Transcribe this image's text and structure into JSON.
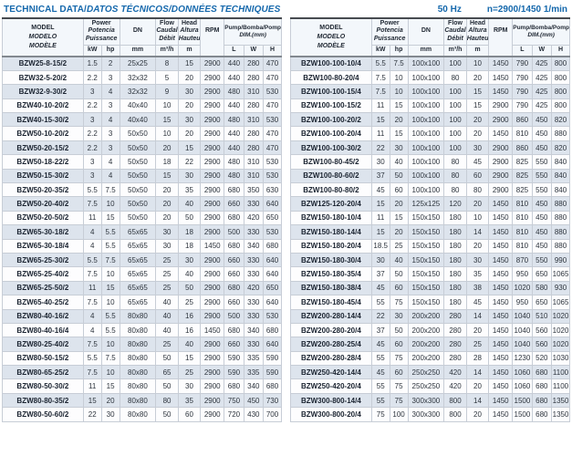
{
  "title": {
    "normal": "TECHNICAL DATA/",
    "italic": "DATOS TÉCNICOS/DONNÉES TECHNIQUES"
  },
  "specs": {
    "frequency": "50 Hz",
    "speed": "n=2900/1450 1/min"
  },
  "colors": {
    "accent_blue": "#1568ac",
    "header_bg": "#f3f7fb",
    "stripe_bg": "#dde4ed",
    "border": "#c7cdd6",
    "top_border": "#474b50"
  },
  "columns": {
    "model": [
      "MODEL",
      "MODELO",
      "MODÈLE"
    ],
    "power": [
      "Power",
      "Potencia",
      "Puissance"
    ],
    "power_units": [
      "kW",
      "hp"
    ],
    "dn": {
      "label": "DN",
      "unit": "mm"
    },
    "flow": {
      "line1": "Flow",
      "line2": "Caudal",
      "line3": "Débit",
      "unit": "m³/h"
    },
    "head": {
      "line1": "Head",
      "line2": "Altura",
      "line3": "Hauteur",
      "unit": "m"
    },
    "rpm": "RPM",
    "dim": {
      "line1": "Pump/Bomba/Pompe",
      "line2": "DIM.(mm)",
      "units": [
        "L",
        "W",
        "H"
      ]
    }
  },
  "tables": {
    "left": {
      "rows": [
        [
          "BZW25-8-15/2",
          "1.5",
          "2",
          "25x25",
          "8",
          "15",
          "2900",
          "440",
          "280",
          "470"
        ],
        [
          "BZW32-5-20/2",
          "2.2",
          "3",
          "32x32",
          "5",
          "20",
          "2900",
          "440",
          "280",
          "470"
        ],
        [
          "BZW32-9-30/2",
          "3",
          "4",
          "32x32",
          "9",
          "30",
          "2900",
          "480",
          "310",
          "530"
        ],
        [
          "BZW40-10-20/2",
          "2.2",
          "3",
          "40x40",
          "10",
          "20",
          "2900",
          "440",
          "280",
          "470"
        ],
        [
          "BZW40-15-30/2",
          "3",
          "4",
          "40x40",
          "15",
          "30",
          "2900",
          "480",
          "310",
          "530"
        ],
        [
          "BZW50-10-20/2",
          "2.2",
          "3",
          "50x50",
          "10",
          "20",
          "2900",
          "440",
          "280",
          "470"
        ],
        [
          "BZW50-20-15/2",
          "2.2",
          "3",
          "50x50",
          "20",
          "15",
          "2900",
          "440",
          "280",
          "470"
        ],
        [
          "BZW50-18-22/2",
          "3",
          "4",
          "50x50",
          "18",
          "22",
          "2900",
          "480",
          "310",
          "530"
        ],
        [
          "BZW50-15-30/2",
          "3",
          "4",
          "50x50",
          "15",
          "30",
          "2900",
          "480",
          "310",
          "530"
        ],
        [
          "BZW50-20-35/2",
          "5.5",
          "7.5",
          "50x50",
          "20",
          "35",
          "2900",
          "680",
          "350",
          "630"
        ],
        [
          "BZW50-20-40/2",
          "7.5",
          "10",
          "50x50",
          "20",
          "40",
          "2900",
          "660",
          "330",
          "640"
        ],
        [
          "BZW50-20-50/2",
          "11",
          "15",
          "50x50",
          "20",
          "50",
          "2900",
          "680",
          "420",
          "650"
        ],
        [
          "BZW65-30-18/2",
          "4",
          "5.5",
          "65x65",
          "30",
          "18",
          "2900",
          "500",
          "330",
          "530"
        ],
        [
          "BZW65-30-18/4",
          "4",
          "5.5",
          "65x65",
          "30",
          "18",
          "1450",
          "680",
          "340",
          "680"
        ],
        [
          "BZW65-25-30/2",
          "5.5",
          "7.5",
          "65x65",
          "25",
          "30",
          "2900",
          "660",
          "330",
          "640"
        ],
        [
          "BZW65-25-40/2",
          "7.5",
          "10",
          "65x65",
          "25",
          "40",
          "2900",
          "660",
          "330",
          "640"
        ],
        [
          "BZW65-25-50/2",
          "11",
          "15",
          "65x65",
          "25",
          "50",
          "2900",
          "680",
          "420",
          "650"
        ],
        [
          "BZW65-40-25/2",
          "7.5",
          "10",
          "65x65",
          "40",
          "25",
          "2900",
          "660",
          "330",
          "640"
        ],
        [
          "BZW80-40-16/2",
          "4",
          "5.5",
          "80x80",
          "40",
          "16",
          "2900",
          "500",
          "330",
          "530"
        ],
        [
          "BZW80-40-16/4",
          "4",
          "5.5",
          "80x80",
          "40",
          "16",
          "1450",
          "680",
          "340",
          "680"
        ],
        [
          "BZW80-25-40/2",
          "7.5",
          "10",
          "80x80",
          "25",
          "40",
          "2900",
          "660",
          "330",
          "640"
        ],
        [
          "BZW80-50-15/2",
          "5.5",
          "7.5",
          "80x80",
          "50",
          "15",
          "2900",
          "590",
          "335",
          "590"
        ],
        [
          "BZW80-65-25/2",
          "7.5",
          "10",
          "80x80",
          "65",
          "25",
          "2900",
          "590",
          "335",
          "590"
        ],
        [
          "BZW80-50-30/2",
          "11",
          "15",
          "80x80",
          "50",
          "30",
          "2900",
          "680",
          "340",
          "680"
        ],
        [
          "BZW80-80-35/2",
          "15",
          "20",
          "80x80",
          "80",
          "35",
          "2900",
          "750",
          "450",
          "730"
        ],
        [
          "BZW80-50-60/2",
          "22",
          "30",
          "80x80",
          "50",
          "60",
          "2900",
          "720",
          "430",
          "700"
        ]
      ]
    },
    "right": {
      "rows": [
        [
          "BZW100-100-10/4",
          "5.5",
          "7.5",
          "100x100",
          "100",
          "10",
          "1450",
          "790",
          "425",
          "800"
        ],
        [
          "BZW100-80-20/4",
          "7.5",
          "10",
          "100x100",
          "80",
          "20",
          "1450",
          "790",
          "425",
          "800"
        ],
        [
          "BZW100-100-15/4",
          "7.5",
          "10",
          "100x100",
          "100",
          "15",
          "1450",
          "790",
          "425",
          "800"
        ],
        [
          "BZW100-100-15/2",
          "11",
          "15",
          "100x100",
          "100",
          "15",
          "2900",
          "790",
          "425",
          "800"
        ],
        [
          "BZW100-100-20/2",
          "15",
          "20",
          "100x100",
          "100",
          "20",
          "2900",
          "860",
          "450",
          "820"
        ],
        [
          "BZW100-100-20/4",
          "11",
          "15",
          "100x100",
          "100",
          "20",
          "1450",
          "810",
          "450",
          "880"
        ],
        [
          "BZW100-100-30/2",
          "22",
          "30",
          "100x100",
          "100",
          "30",
          "2900",
          "860",
          "450",
          "820"
        ],
        [
          "BZW100-80-45/2",
          "30",
          "40",
          "100x100",
          "80",
          "45",
          "2900",
          "825",
          "550",
          "840"
        ],
        [
          "BZW100-80-60/2",
          "37",
          "50",
          "100x100",
          "80",
          "60",
          "2900",
          "825",
          "550",
          "840"
        ],
        [
          "BZW100-80-80/2",
          "45",
          "60",
          "100x100",
          "80",
          "80",
          "2900",
          "825",
          "550",
          "840"
        ],
        [
          "BZW125-120-20/4",
          "15",
          "20",
          "125x125",
          "120",
          "20",
          "1450",
          "810",
          "450",
          "880"
        ],
        [
          "BZW150-180-10/4",
          "11",
          "15",
          "150x150",
          "180",
          "10",
          "1450",
          "810",
          "450",
          "880"
        ],
        [
          "BZW150-180-14/4",
          "15",
          "20",
          "150x150",
          "180",
          "14",
          "1450",
          "810",
          "450",
          "880"
        ],
        [
          "BZW150-180-20/4",
          "18.5",
          "25",
          "150x150",
          "180",
          "20",
          "1450",
          "810",
          "450",
          "880"
        ],
        [
          "BZW150-180-30/4",
          "30",
          "40",
          "150x150",
          "180",
          "30",
          "1450",
          "870",
          "550",
          "990"
        ],
        [
          "BZW150-180-35/4",
          "37",
          "50",
          "150x150",
          "180",
          "35",
          "1450",
          "950",
          "650",
          "1065"
        ],
        [
          "BZW150-180-38/4",
          "45",
          "60",
          "150x150",
          "180",
          "38",
          "1450",
          "1020",
          "580",
          "930"
        ],
        [
          "BZW150-180-45/4",
          "55",
          "75",
          "150x150",
          "180",
          "45",
          "1450",
          "950",
          "650",
          "1065"
        ],
        [
          "BZW200-280-14/4",
          "22",
          "30",
          "200x200",
          "280",
          "14",
          "1450",
          "1040",
          "510",
          "1020"
        ],
        [
          "BZW200-280-20/4",
          "37",
          "50",
          "200x200",
          "280",
          "20",
          "1450",
          "1040",
          "560",
          "1020"
        ],
        [
          "BZW200-280-25/4",
          "45",
          "60",
          "200x200",
          "280",
          "25",
          "1450",
          "1040",
          "560",
          "1020"
        ],
        [
          "BZW200-280-28/4",
          "55",
          "75",
          "200x200",
          "280",
          "28",
          "1450",
          "1230",
          "520",
          "1030"
        ],
        [
          "BZW250-420-14/4",
          "45",
          "60",
          "250x250",
          "420",
          "14",
          "1450",
          "1060",
          "680",
          "1100"
        ],
        [
          "BZW250-420-20/4",
          "55",
          "75",
          "250x250",
          "420",
          "20",
          "1450",
          "1060",
          "680",
          "1100"
        ],
        [
          "BZW300-800-14/4",
          "55",
          "75",
          "300x300",
          "800",
          "14",
          "1450",
          "1500",
          "680",
          "1350"
        ],
        [
          "BZW300-800-20/4",
          "75",
          "100",
          "300x300",
          "800",
          "20",
          "1450",
          "1500",
          "680",
          "1350"
        ]
      ]
    }
  }
}
